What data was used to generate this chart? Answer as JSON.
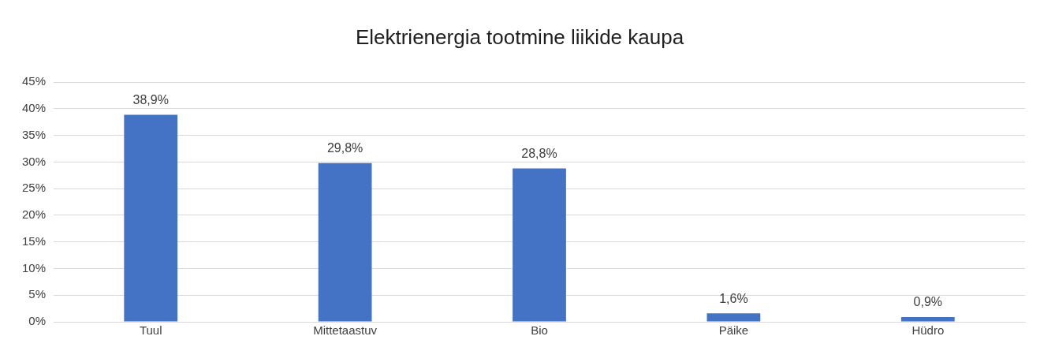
{
  "chart_data": {
    "type": "bar",
    "title": "Elektrienergia tootmine liikide kaupa",
    "categories": [
      "Tuul",
      "Mittetaastuv",
      "Bio",
      "Päike",
      "Hüdro"
    ],
    "values": [
      38.9,
      29.8,
      28.8,
      1.6,
      0.9
    ],
    "value_labels": [
      "38,9%",
      "29,8%",
      "28,8%",
      "1,6%",
      "0,9%"
    ],
    "color": "#4472c4",
    "ylim": [
      0,
      45
    ],
    "yticks": [
      {
        "value": 0,
        "label": "0%"
      },
      {
        "value": 5,
        "label": "5%"
      },
      {
        "value": 10,
        "label": "10%"
      },
      {
        "value": 15,
        "label": "15%"
      },
      {
        "value": 20,
        "label": "20%"
      },
      {
        "value": 25,
        "label": "25%"
      },
      {
        "value": 30,
        "label": "30%"
      },
      {
        "value": 35,
        "label": "35%"
      },
      {
        "value": 40,
        "label": "40%"
      },
      {
        "value": 45,
        "label": "45%"
      }
    ],
    "grid": "y",
    "legend": false
  }
}
